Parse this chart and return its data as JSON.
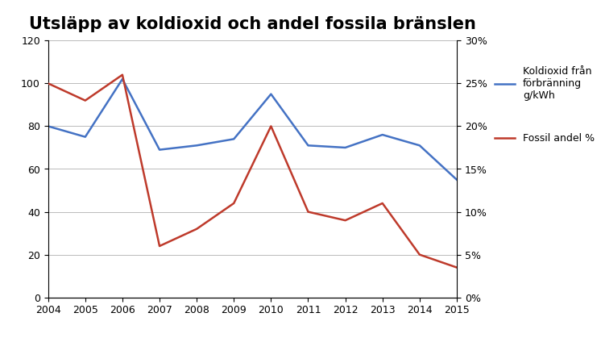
{
  "title": "Utsläpp av koldioxid och andel fossila bränslen",
  "years": [
    2004,
    2005,
    2006,
    2007,
    2008,
    2009,
    2010,
    2011,
    2012,
    2013,
    2014,
    2015
  ],
  "blue_values": [
    80,
    75,
    102,
    69,
    71,
    74,
    95,
    71,
    70,
    76,
    71,
    55
  ],
  "red_values": [
    0.25,
    0.23,
    0.26,
    0.06,
    0.08,
    0.11,
    0.2,
    0.1,
    0.09,
    0.11,
    0.05,
    0.035
  ],
  "blue_color": "#4472C4",
  "red_color": "#BE3A2B",
  "blue_label_line1": "Koldioxid från",
  "blue_label_line2": "förbränning",
  "blue_label_line3": "g/kWh",
  "red_label": "Fossil andel %",
  "left_ylim": [
    0,
    120
  ],
  "right_ylim": [
    0,
    0.3
  ],
  "left_yticks": [
    0,
    20,
    40,
    60,
    80,
    100,
    120
  ],
  "right_yticks": [
    0.0,
    0.05,
    0.1,
    0.15,
    0.2,
    0.25,
    0.3
  ],
  "right_yticklabels": [
    "0%",
    "5%",
    "10%",
    "15%",
    "20%",
    "25%",
    "30%"
  ],
  "title_fontsize": 15,
  "tick_fontsize": 9,
  "legend_fontsize": 9,
  "background_color": "#ffffff",
  "grid_color": "#b0b0b0"
}
